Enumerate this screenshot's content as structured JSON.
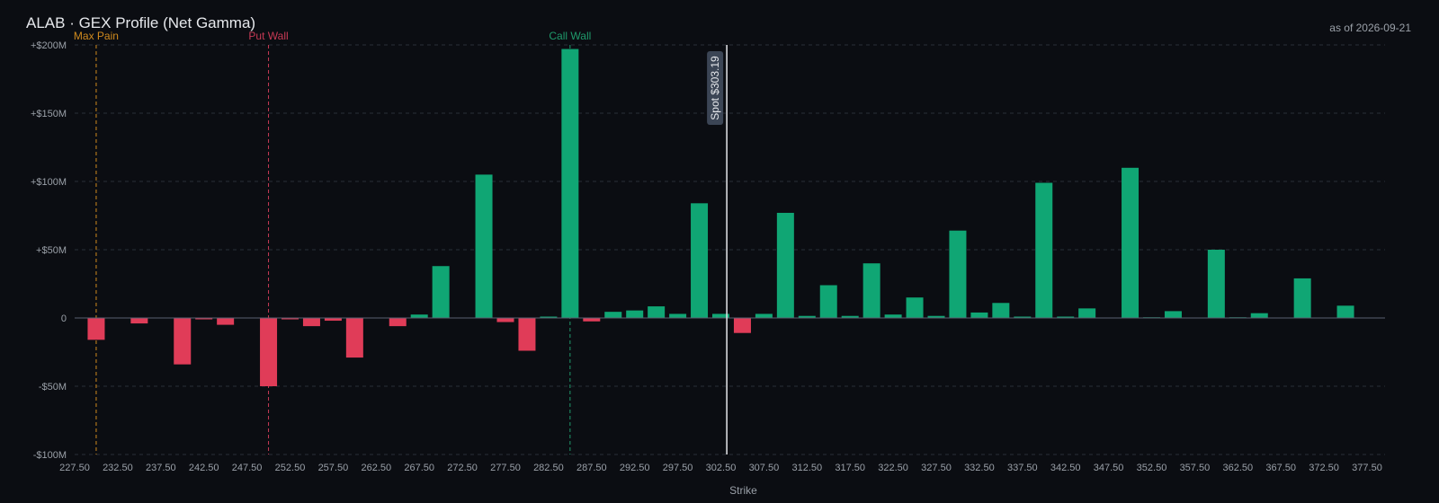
{
  "header": {
    "title": "ALAB · GEX Profile (Net Gamma)",
    "as_of": "as of 2026-09-21"
  },
  "colors": {
    "background": "#0b0d12",
    "positive": "#10a674",
    "negative": "#e03c58",
    "max_pain": "#d08a1e",
    "put_wall": "#c83a55",
    "call_wall": "#1f9a6b",
    "spot": "#e6e8ec",
    "grid": "#2a2f38",
    "text": "#9aa0a8"
  },
  "chart_data": {
    "type": "bar",
    "title": "ALAB · GEX Profile (Net Gamma)",
    "xlabel": "Strike",
    "ylabel": "",
    "ylim": [
      -100,
      200
    ],
    "y_unit": "$M",
    "y_ticks": [
      200,
      150,
      100,
      50,
      0,
      -50,
      -100
    ],
    "y_tick_labels": [
      "+$200M",
      "+$150M",
      "+$100M",
      "+$50M",
      "0",
      "-$50M",
      "-$100M"
    ],
    "xlim": [
      227.5,
      377.5
    ],
    "x_ticks": [
      227.5,
      232.5,
      237.5,
      242.5,
      247.5,
      252.5,
      257.5,
      262.5,
      267.5,
      272.5,
      277.5,
      282.5,
      287.5,
      292.5,
      297.5,
      302.5,
      307.5,
      312.5,
      317.5,
      322.5,
      327.5,
      332.5,
      337.5,
      342.5,
      347.5,
      352.5,
      357.5,
      362.5,
      367.5,
      372.5,
      377.5
    ],
    "x_tick_labels": [
      "227.50",
      "232.50",
      "237.50",
      "242.50",
      "247.50",
      "252.50",
      "257.50",
      "262.50",
      "267.50",
      "272.50",
      "277.50",
      "282.50",
      "287.50",
      "292.50",
      "297.50",
      "302.50",
      "307.50",
      "312.50",
      "317.50",
      "322.50",
      "327.50",
      "332.50",
      "337.50",
      "342.50",
      "347.50",
      "352.50",
      "357.50",
      "362.50",
      "367.50",
      "372.50",
      "377.50"
    ],
    "bars": [
      {
        "strike": 230,
        "value": -16
      },
      {
        "strike": 235,
        "value": -4
      },
      {
        "strike": 240,
        "value": -34
      },
      {
        "strike": 242.5,
        "value": -1
      },
      {
        "strike": 245,
        "value": -5
      },
      {
        "strike": 250,
        "value": -50
      },
      {
        "strike": 252.5,
        "value": -1
      },
      {
        "strike": 255,
        "value": -6
      },
      {
        "strike": 257.5,
        "value": -2
      },
      {
        "strike": 260,
        "value": -29
      },
      {
        "strike": 265,
        "value": -6
      },
      {
        "strike": 267.5,
        "value": 2.5
      },
      {
        "strike": 270,
        "value": 38
      },
      {
        "strike": 275,
        "value": 105
      },
      {
        "strike": 277.5,
        "value": -3
      },
      {
        "strike": 280,
        "value": -24
      },
      {
        "strike": 282.5,
        "value": 1
      },
      {
        "strike": 285,
        "value": 197
      },
      {
        "strike": 287.5,
        "value": -2.5
      },
      {
        "strike": 290,
        "value": 4.5
      },
      {
        "strike": 292.5,
        "value": 5.5
      },
      {
        "strike": 295,
        "value": 8.5
      },
      {
        "strike": 297.5,
        "value": 3
      },
      {
        "strike": 300,
        "value": 84
      },
      {
        "strike": 302.5,
        "value": 3
      },
      {
        "strike": 305,
        "value": -11
      },
      {
        "strike": 307.5,
        "value": 3
      },
      {
        "strike": 310,
        "value": 77
      },
      {
        "strike": 312.5,
        "value": 1.5
      },
      {
        "strike": 315,
        "value": 24
      },
      {
        "strike": 317.5,
        "value": 1.5
      },
      {
        "strike": 320,
        "value": 40
      },
      {
        "strike": 322.5,
        "value": 2.5
      },
      {
        "strike": 325,
        "value": 15
      },
      {
        "strike": 327.5,
        "value": 1.5
      },
      {
        "strike": 330,
        "value": 64
      },
      {
        "strike": 332.5,
        "value": 4
      },
      {
        "strike": 335,
        "value": 11
      },
      {
        "strike": 337.5,
        "value": 1
      },
      {
        "strike": 340,
        "value": 99
      },
      {
        "strike": 342.5,
        "value": 1
      },
      {
        "strike": 345,
        "value": 7
      },
      {
        "strike": 350,
        "value": 110
      },
      {
        "strike": 352.5,
        "value": 0.5
      },
      {
        "strike": 355,
        "value": 5
      },
      {
        "strike": 360,
        "value": 50
      },
      {
        "strike": 362.5,
        "value": 0.5
      },
      {
        "strike": 365,
        "value": 3.5
      },
      {
        "strike": 370,
        "value": 29
      },
      {
        "strike": 375,
        "value": 9
      }
    ],
    "markers": [
      {
        "id": "max-pain",
        "label": "Max Pain",
        "strike": 230,
        "color": "#d08a1e"
      },
      {
        "id": "put-wall",
        "label": "Put Wall",
        "strike": 250,
        "color": "#c83a55"
      },
      {
        "id": "call-wall",
        "label": "Call Wall",
        "strike": 285,
        "color": "#1f9a6b"
      }
    ],
    "spot": {
      "label": "Spot $303.19",
      "value": 303.19
    },
    "grid": true,
    "legend": "none"
  }
}
